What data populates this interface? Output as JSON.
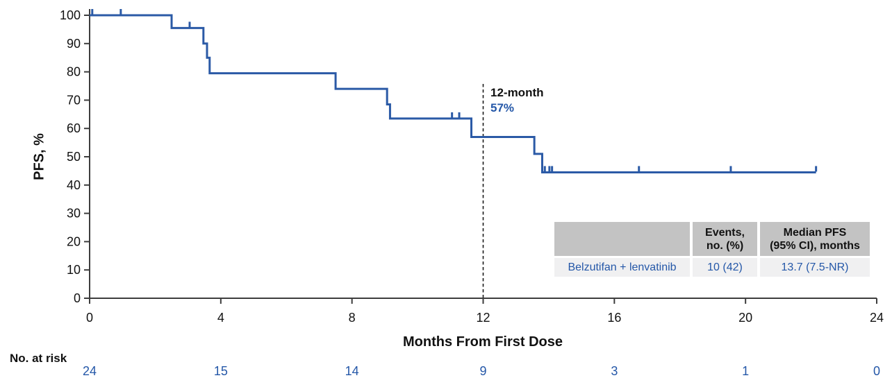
{
  "colors": {
    "line": "#2b5aa6",
    "blue_text": "#2457a8",
    "axis": "#3d3d3d",
    "text": "#111111",
    "dashed_line": "#1a1a1a",
    "table_header_bg": "#c3c3c3",
    "table_row_bg": "#f0f0f1"
  },
  "y_axis": {
    "ticks": [
      0,
      10,
      20,
      30,
      40,
      50,
      60,
      70,
      80,
      90,
      100
    ],
    "min": 0,
    "max": 100
  },
  "x_axis": {
    "ticks": [
      0,
      4,
      8,
      12,
      16,
      20,
      24
    ],
    "min": 0,
    "max": 24
  },
  "chart_data": {
    "type": "line",
    "subtype": "kaplan-meier-step",
    "title": "",
    "xlabel": "Months From First Dose",
    "ylabel": "PFS, %",
    "xlim": [
      0,
      24
    ],
    "ylim": [
      0,
      100
    ],
    "grid": false,
    "series": [
      {
        "name": "Belzutifan + lenvatinib",
        "color": "#2b5aa6",
        "steps": [
          [
            0,
            100
          ],
          [
            2.5,
            95.5
          ],
          [
            3.47,
            90
          ],
          [
            3.58,
            85
          ],
          [
            3.66,
            79.5
          ],
          [
            7.5,
            74
          ],
          [
            9.07,
            68.5
          ],
          [
            9.16,
            63.5
          ],
          [
            11.64,
            57
          ],
          [
            13.56,
            51
          ],
          [
            13.8,
            44.5
          ],
          [
            22.15,
            44.5
          ]
        ],
        "censor_marks": [
          [
            0.08,
            100
          ],
          [
            0.95,
            100
          ],
          [
            3.05,
            95.5
          ],
          [
            11.05,
            63.5
          ],
          [
            11.27,
            63.5
          ],
          [
            13.8,
            44.5
          ],
          [
            13.88,
            44.5
          ],
          [
            14.02,
            44.5
          ],
          [
            14.1,
            44.5
          ],
          [
            16.75,
            44.5
          ],
          [
            19.55,
            44.5
          ],
          [
            22.15,
            44.5
          ]
        ]
      }
    ],
    "annotation": {
      "line1": "12-month",
      "line2": "57%",
      "x": 12
    }
  },
  "risk_table": {
    "label": "No. at risk",
    "values": [
      "24",
      "15",
      "14",
      "9",
      "3",
      "1",
      "0"
    ]
  },
  "stats_table": {
    "headers": [
      "",
      "Events,\nno. (%)",
      "Median PFS\n(95% CI), months"
    ],
    "rows": [
      {
        "name": "Belzutifan + lenvatinib",
        "events": "10 (42)",
        "median": "13.7 (7.5-NR)"
      }
    ]
  }
}
